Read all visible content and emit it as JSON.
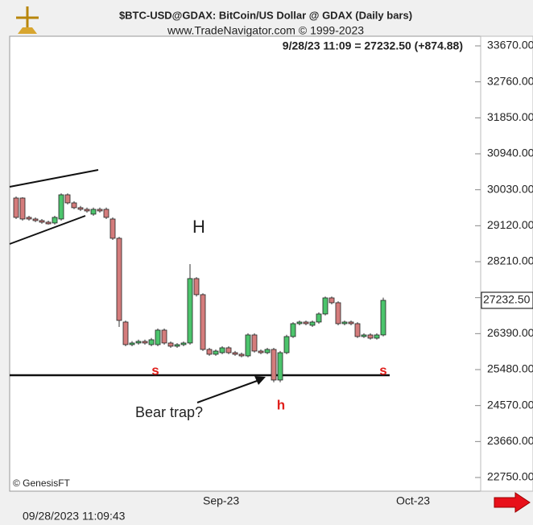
{
  "chart_data": {
    "type": "candlestick",
    "title": "$BTC-USD@GDAX:  BitCoin/US Dollar @ GDAX  (Daily bars)",
    "subtitle": "www.TradeNavigator.com © 1999-2023",
    "quote": "9/28/23 11:09 = 27232.50 (+874.88)",
    "last_price_label": "27232.50",
    "copyright": "© GenesisFT",
    "timestamp": "09/28/2023 11:09:43",
    "annotations": [
      "H",
      "h",
      "s",
      "s",
      "Bear trap?"
    ],
    "up_color": "#4cc46c",
    "down_color": "#d47c7c",
    "categories": [
      null,
      null,
      null,
      null,
      null,
      null,
      null,
      null,
      null,
      null,
      null,
      null,
      null,
      null,
      null,
      null,
      null,
      null,
      null,
      null,
      null,
      null,
      null,
      null,
      null,
      null,
      null,
      null,
      null,
      null,
      "Sep-23",
      null,
      null,
      null,
      null,
      null,
      null,
      null,
      null,
      null,
      null,
      null,
      null,
      null,
      null,
      null,
      null,
      null,
      null,
      null,
      null,
      null,
      null,
      null,
      null,
      null,
      null,
      null,
      null,
      null,
      "Oct-23"
    ],
    "open": [
      29820,
      29820,
      29331,
      29290,
      29250,
      29209,
      29189,
      29290,
      29902,
      29698,
      29576,
      29535,
      29413,
      29535,
      29535,
      29290,
      28802,
      26683,
      26112,
      26153,
      26194,
      26112,
      26112,
      26479,
      26153,
      26072,
      26112,
      26153,
      27783,
      27376,
      25990,
      25868,
      25908,
      26031,
      25908,
      25868,
      25827,
      26357,
      25949,
      25908,
      25990,
      25216,
      25908,
      26316,
      26642,
      26683,
      26601,
      26683,
      26887,
      27294,
      27172,
      26642,
      26683,
      26642,
      26316,
      26357,
      26275,
      26357,
      null,
      null,
      null
    ],
    "high": [
      29860,
      29840,
      29370,
      29330,
      29290,
      29250,
      29370,
      29940,
      29940,
      29740,
      29620,
      29580,
      29580,
      29580,
      29580,
      29330,
      28840,
      26720,
      26200,
      26240,
      26240,
      26280,
      26520,
      26520,
      26190,
      26150,
      26190,
      28150,
      27820,
      27410,
      26030,
      25990,
      26070,
      26070,
      25950,
      25910,
      26400,
      26400,
      25990,
      26030,
      26030,
      25950,
      26360,
      26680,
      26720,
      26720,
      26720,
      26930,
      27330,
      27330,
      27210,
      26720,
      26720,
      26680,
      26400,
      26400,
      26400,
      27300,
      null,
      null,
      null
    ],
    "low": [
      29290,
      29250,
      29250,
      29210,
      29170,
      29150,
      29150,
      29250,
      29660,
      29540,
      29490,
      29450,
      29370,
      29450,
      29290,
      28760,
      26560,
      26070,
      26070,
      26110,
      26110,
      26070,
      26070,
      26110,
      26030,
      26030,
      26070,
      26110,
      27330,
      25950,
      25830,
      25830,
      25870,
      25870,
      25830,
      25790,
      25790,
      25910,
      25870,
      25870,
      25160,
      25160,
      25870,
      26280,
      26600,
      26600,
      26560,
      26640,
      26850,
      27130,
      26600,
      26600,
      26600,
      26280,
      26280,
      26240,
      26240,
      26320,
      null,
      null,
      null
    ],
    "close": [
      29331,
      29290,
      29290,
      29250,
      29209,
      29189,
      29331,
      29902,
      29698,
      29576,
      29535,
      29494,
      29535,
      29494,
      29331,
      28802,
      26724,
      26112,
      26153,
      26194,
      26153,
      26235,
      26479,
      26153,
      26072,
      26112,
      26153,
      27783,
      27376,
      25990,
      25868,
      25949,
      26031,
      25908,
      25868,
      25827,
      26357,
      25949,
      25908,
      25990,
      25216,
      25908,
      26316,
      26642,
      26683,
      26642,
      26683,
      26887,
      27294,
      27172,
      26642,
      26683,
      26642,
      26316,
      26357,
      26275,
      26357,
      27232.5,
      null,
      null,
      null
    ],
    "ylim": [
      22404,
      33914
    ],
    "yticks": [
      {
        "value": 22750,
        "label": "22750.00"
      },
      {
        "value": 23660,
        "label": "23660.00"
      },
      {
        "value": 24570,
        "label": "24570.00"
      },
      {
        "value": 25480,
        "label": "25480.00"
      },
      {
        "value": 26390,
        "label": "26390.00"
      },
      {
        "value": 27300,
        "label": "27300.00"
      },
      {
        "value": 28210,
        "label": "28210.00"
      },
      {
        "value": 29120,
        "label": "29120.00"
      },
      {
        "value": 30030,
        "label": "30030.00"
      },
      {
        "value": 30940,
        "label": "30940.00"
      },
      {
        "value": 31850,
        "label": "31850.00"
      },
      {
        "value": 32760,
        "label": "32760.00"
      },
      {
        "value": 33670,
        "label": "33670.00"
      }
    ]
  }
}
